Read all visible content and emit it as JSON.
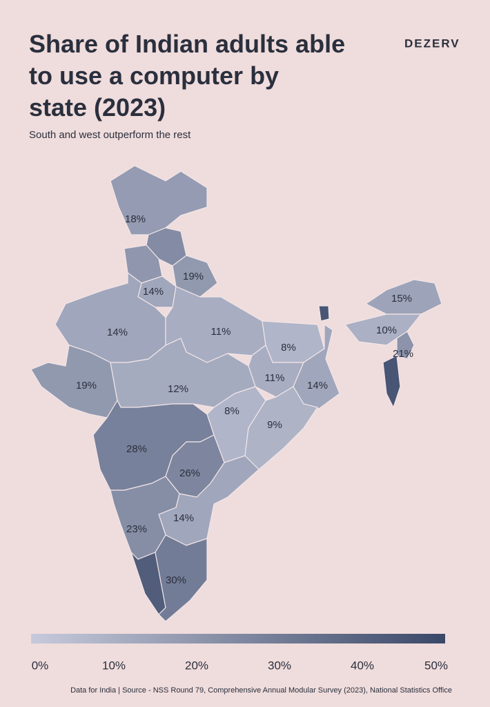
{
  "title": "Share of Indian adults able to use a computer by state (2023)",
  "subtitle": "South and west outperform the rest",
  "brand": "DEZERV",
  "source": "Data for India | Source - NSS Round 79, Comprehensive Annual Modular Survey (2023), National Statistics Office",
  "scale": {
    "lim": [
      0,
      50
    ],
    "colors": [
      "#c7cadb",
      "#3a4868"
    ],
    "ticks": [
      {
        "value": 0,
        "label": "0%"
      },
      {
        "value": 10,
        "label": "10%"
      },
      {
        "value": 20,
        "label": "20%"
      },
      {
        "value": 30,
        "label": "30%"
      },
      {
        "value": 40,
        "label": "40%"
      },
      {
        "value": 50,
        "label": "50%"
      }
    ]
  },
  "regions": [
    {
      "value": 18,
      "label": "18%"
    },
    {
      "value": 24
    },
    {
      "value": 20
    },
    {
      "value": 19,
      "label": "19%"
    },
    {
      "value": 14,
      "label": "14%"
    },
    {
      "value": 14,
      "label": "14%"
    },
    {
      "value": 11,
      "label": "11%"
    },
    {
      "value": 8,
      "label": "8%"
    },
    {
      "value": 11,
      "label": "11%"
    },
    {
      "value": 14,
      "label": "14%"
    },
    {
      "value": 19,
      "label": "19%"
    },
    {
      "value": 12,
      "label": "12%"
    },
    {
      "value": 8,
      "label": "8%"
    },
    {
      "value": 9,
      "label": "9%"
    },
    {
      "value": 28,
      "label": "28%"
    },
    {
      "value": 26,
      "label": "26%"
    },
    {
      "value": 14,
      "label": "14%"
    },
    {
      "value": 23,
      "label": "23%"
    },
    {
      "value": 42
    },
    {
      "value": 30,
      "label": "30%"
    },
    {
      "value": 45
    },
    {
      "value": 15,
      "label": "15%"
    },
    {
      "value": 10,
      "label": "10%"
    },
    {
      "value": 21,
      "label": "21%"
    },
    {
      "value": 45
    }
  ]
}
